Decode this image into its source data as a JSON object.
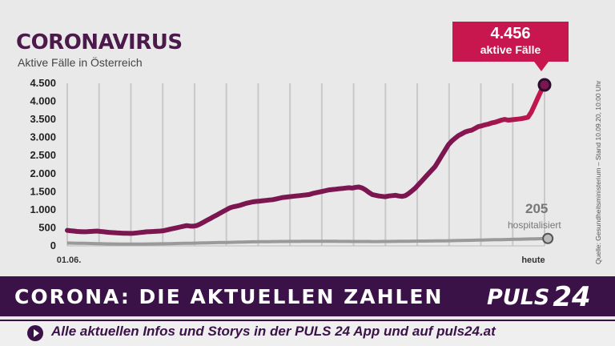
{
  "colors": {
    "active_line": "#7b1650",
    "active_line_end": "#c8174e",
    "hospital_line": "#9a9a9a",
    "grid": "#c9c9cc",
    "band": "#3b1247",
    "callout": "#c8174e",
    "title": "#4b1a4a"
  },
  "callout": {
    "number": "4.456",
    "label": "aktive Fälle"
  },
  "hospital_annotation": {
    "number": "205",
    "label": "hospitalisiert"
  },
  "source": "Quelle: Gesundheitsministerium – Stand 10.09.20, 10:00 Uhr",
  "band": {
    "title": "CORONA: DIE AKTUELLEN ZAHLEN",
    "logo_text": "PULS",
    "logo_digits": "24"
  },
  "ticker": {
    "icon": "play-icon",
    "text": "Alle aktuellen Infos und Storys in der PULS 24 App und auf puls24.at"
  },
  "chart_data": {
    "type": "line",
    "title": "CORONAVIRUS",
    "subtitle": "Aktive Fälle in Österreich",
    "ylim": [
      0,
      4500
    ],
    "yticks": [
      0,
      500,
      1000,
      1500,
      2000,
      2500,
      3000,
      3500,
      4000,
      4500
    ],
    "ytick_labels": [
      "0",
      "500",
      "1.000",
      "1.500",
      "2.000",
      "2.500",
      "3.000",
      "3.500",
      "4.000",
      "4.500"
    ],
    "x_labels": [
      "01.06.",
      "heute"
    ],
    "grid": true,
    "series": [
      {
        "key": "active",
        "values": [
          430,
          420,
          410,
          400,
          395,
          390,
          392,
          400,
          405,
          410,
          400,
          390,
          380,
          370,
          365,
          360,
          355,
          350,
          348,
          345,
          350,
          360,
          370,
          380,
          390,
          395,
          400,
          405,
          410,
          420,
          440,
          460,
          480,
          500,
          520,
          540,
          560,
          550,
          545,
          560,
          600,
          650,
          700,
          750,
          800,
          850,
          900,
          950,
          1000,
          1050,
          1080,
          1100,
          1120,
          1150,
          1180,
          1200,
          1220,
          1230,
          1240,
          1250,
          1260,
          1270,
          1280,
          1300,
          1320,
          1340,
          1350,
          1360,
          1370,
          1380,
          1390,
          1400,
          1410,
          1420,
          1450,
          1470,
          1490,
          1510,
          1530,
          1550,
          1560,
          1570,
          1580,
          1590,
          1600,
          1610,
          1600,
          1620,
          1630,
          1600,
          1550,
          1480,
          1420,
          1400,
          1380,
          1370,
          1360,
          1380,
          1390,
          1400,
          1380,
          1370,
          1390,
          1450,
          1520,
          1600,
          1700,
          1800,
          1900,
          2000,
          2100,
          2200,
          2350,
          2500,
          2650,
          2800,
          2900,
          2980,
          3050,
          3100,
          3150,
          3180,
          3200,
          3250,
          3300,
          3320,
          3350,
          3370,
          3400,
          3420,
          3450,
          3480,
          3500,
          3480,
          3490,
          3500,
          3510,
          3520,
          3540,
          3560,
          3700,
          3900,
          4100,
          4300,
          4456
        ]
      },
      {
        "key": "hospital",
        "values": [
          80,
          78,
          76,
          74,
          72,
          70,
          68,
          66,
          64,
          62,
          60,
          58,
          56,
          55,
          54,
          53,
          52,
          52,
          51,
          50,
          50,
          50,
          51,
          52,
          53,
          54,
          55,
          56,
          57,
          58,
          60,
          62,
          64,
          66,
          68,
          70,
          72,
          74,
          76,
          78,
          80,
          82,
          84,
          86,
          88,
          90,
          92,
          94,
          96,
          98,
          100,
          102,
          104,
          106,
          108,
          110,
          112,
          114,
          115,
          116,
          117,
          118,
          119,
          120,
          121,
          122,
          123,
          124,
          124,
          125,
          125,
          126,
          126,
          127,
          127,
          128,
          128,
          128,
          127,
          127,
          126,
          126,
          125,
          125,
          124,
          124,
          123,
          123,
          122,
          122,
          121,
          121,
          120,
          120,
          120,
          121,
          122,
          123,
          124,
          125,
          126,
          127,
          128,
          129,
          130,
          131,
          132,
          133,
          134,
          135,
          136,
          137,
          138,
          139,
          140,
          142,
          144,
          146,
          148,
          150,
          152,
          154,
          156,
          158,
          160,
          162,
          164,
          166,
          168,
          170,
          172,
          174,
          176,
          178,
          180,
          182,
          184,
          186,
          188,
          190,
          192,
          195,
          198,
          200,
          202,
          205
        ]
      }
    ]
  }
}
